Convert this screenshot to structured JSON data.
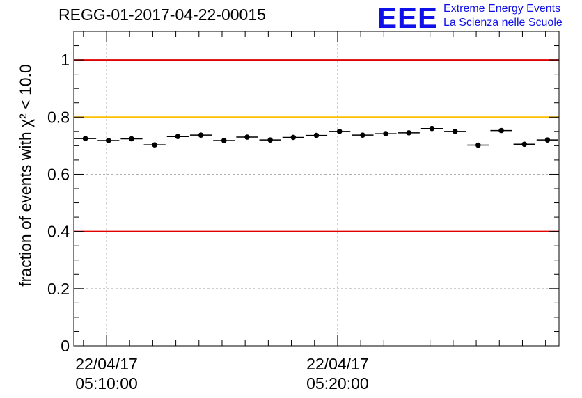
{
  "chart_data": {
    "type": "scatter",
    "title": "REGG-01-2017-04-22-00015",
    "ylabel": "fraction of events with χ² < 10.0",
    "xlabel": "",
    "ylim": [
      0,
      1.1
    ],
    "yticks": [
      "0",
      "0.2",
      "0.4",
      "0.6",
      "0.8",
      "1"
    ],
    "x_tick_labels": [
      {
        "date": "22/04/17",
        "time": "05:10:00"
      },
      {
        "date": "22/04/17",
        "time": "05:20:00"
      }
    ],
    "grid": true,
    "reference_lines": [
      {
        "y": 1.0,
        "color": "#e00000"
      },
      {
        "y": 0.8,
        "color": "#ffc000"
      },
      {
        "y": 0.4,
        "color": "#e00000"
      }
    ],
    "bins_start": "05:08:35",
    "bin_width_seconds": 60,
    "values": [
      0.725,
      0.718,
      0.724,
      0.703,
      0.732,
      0.737,
      0.718,
      0.73,
      0.72,
      0.729,
      0.736,
      0.75,
      0.737,
      0.742,
      0.745,
      0.76,
      0.75,
      0.702,
      0.753,
      0.705,
      0.72
    ]
  },
  "header": {
    "logo_text": "EEE",
    "logo_line1": "Extreme Energy Events",
    "logo_line2": "La Scienza nelle Scuole",
    "logo_color": "#1010e8"
  }
}
